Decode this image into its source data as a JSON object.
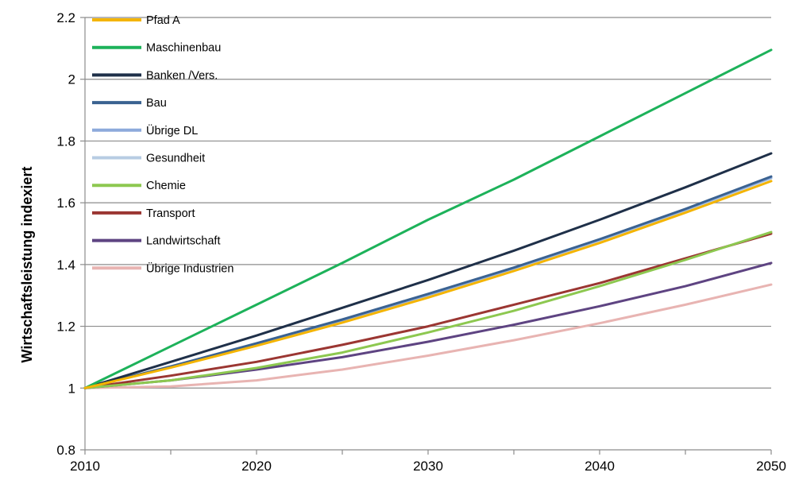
{
  "chart_data": {
    "type": "line",
    "title": "",
    "xlabel": "",
    "ylabel": "Wirtschaftsleistung indexiert",
    "xlim": [
      2010,
      2050
    ],
    "ylim": [
      0.8,
      2.2
    ],
    "x_ticks": [
      "2010",
      "2020",
      "2030",
      "2040",
      "2050"
    ],
    "y_ticks": [
      "0.8",
      "1",
      "1.2",
      "1.4",
      "1.6",
      "1.8",
      "2",
      "2.2"
    ],
    "grid": "horizontal",
    "legend_position": "top-left",
    "x": [
      2010,
      2015,
      2020,
      2025,
      2030,
      2035,
      2040,
      2045,
      2050
    ],
    "series": [
      {
        "name": "Pfad A",
        "color": "#F4B400",
        "values": [
          1.0,
          1.066,
          1.137,
          1.212,
          1.293,
          1.379,
          1.47,
          1.568,
          1.67
        ]
      },
      {
        "name": "Maschinenbau",
        "color": "#1DB25A",
        "values": [
          1.0,
          1.135,
          1.27,
          1.405,
          1.545,
          1.675,
          1.815,
          1.955,
          2.095
        ]
      },
      {
        "name": "Banken /Vers.",
        "color": "#1F3049",
        "values": [
          1.0,
          1.085,
          1.17,
          1.26,
          1.35,
          1.445,
          1.545,
          1.65,
          1.76
        ]
      },
      {
        "name": "Bau",
        "color": "#3A6291",
        "values": [
          1.0,
          1.07,
          1.145,
          1.222,
          1.305,
          1.39,
          1.482,
          1.58,
          1.685
        ]
      },
      {
        "name": "Übrige DL",
        "color": "#8DAADB",
        "values": [
          1.0,
          1.069,
          1.143,
          1.22,
          1.302,
          1.388,
          1.48,
          1.578,
          1.682
        ]
      },
      {
        "name": "Gesundheit",
        "color": "#B7CCE3",
        "values": [
          1.0,
          1.068,
          1.141,
          1.218,
          1.3,
          1.386,
          1.478,
          1.575,
          1.679
        ]
      },
      {
        "name": "Chemie",
        "color": "#8DC850",
        "values": [
          1.0,
          1.025,
          1.065,
          1.115,
          1.18,
          1.25,
          1.33,
          1.415,
          1.505
        ]
      },
      {
        "name": "Transport",
        "color": "#9B3632",
        "values": [
          1.0,
          1.04,
          1.085,
          1.14,
          1.2,
          1.27,
          1.34,
          1.42,
          1.5
        ]
      },
      {
        "name": "Landwirtschaft",
        "color": "#5E4482",
        "values": [
          1.0,
          1.025,
          1.06,
          1.1,
          1.15,
          1.205,
          1.265,
          1.33,
          1.405
        ]
      },
      {
        "name": "Übrige Industrien",
        "color": "#E8B4B2",
        "values": [
          1.0,
          1.005,
          1.025,
          1.06,
          1.105,
          1.155,
          1.21,
          1.27,
          1.335
        ]
      }
    ]
  }
}
